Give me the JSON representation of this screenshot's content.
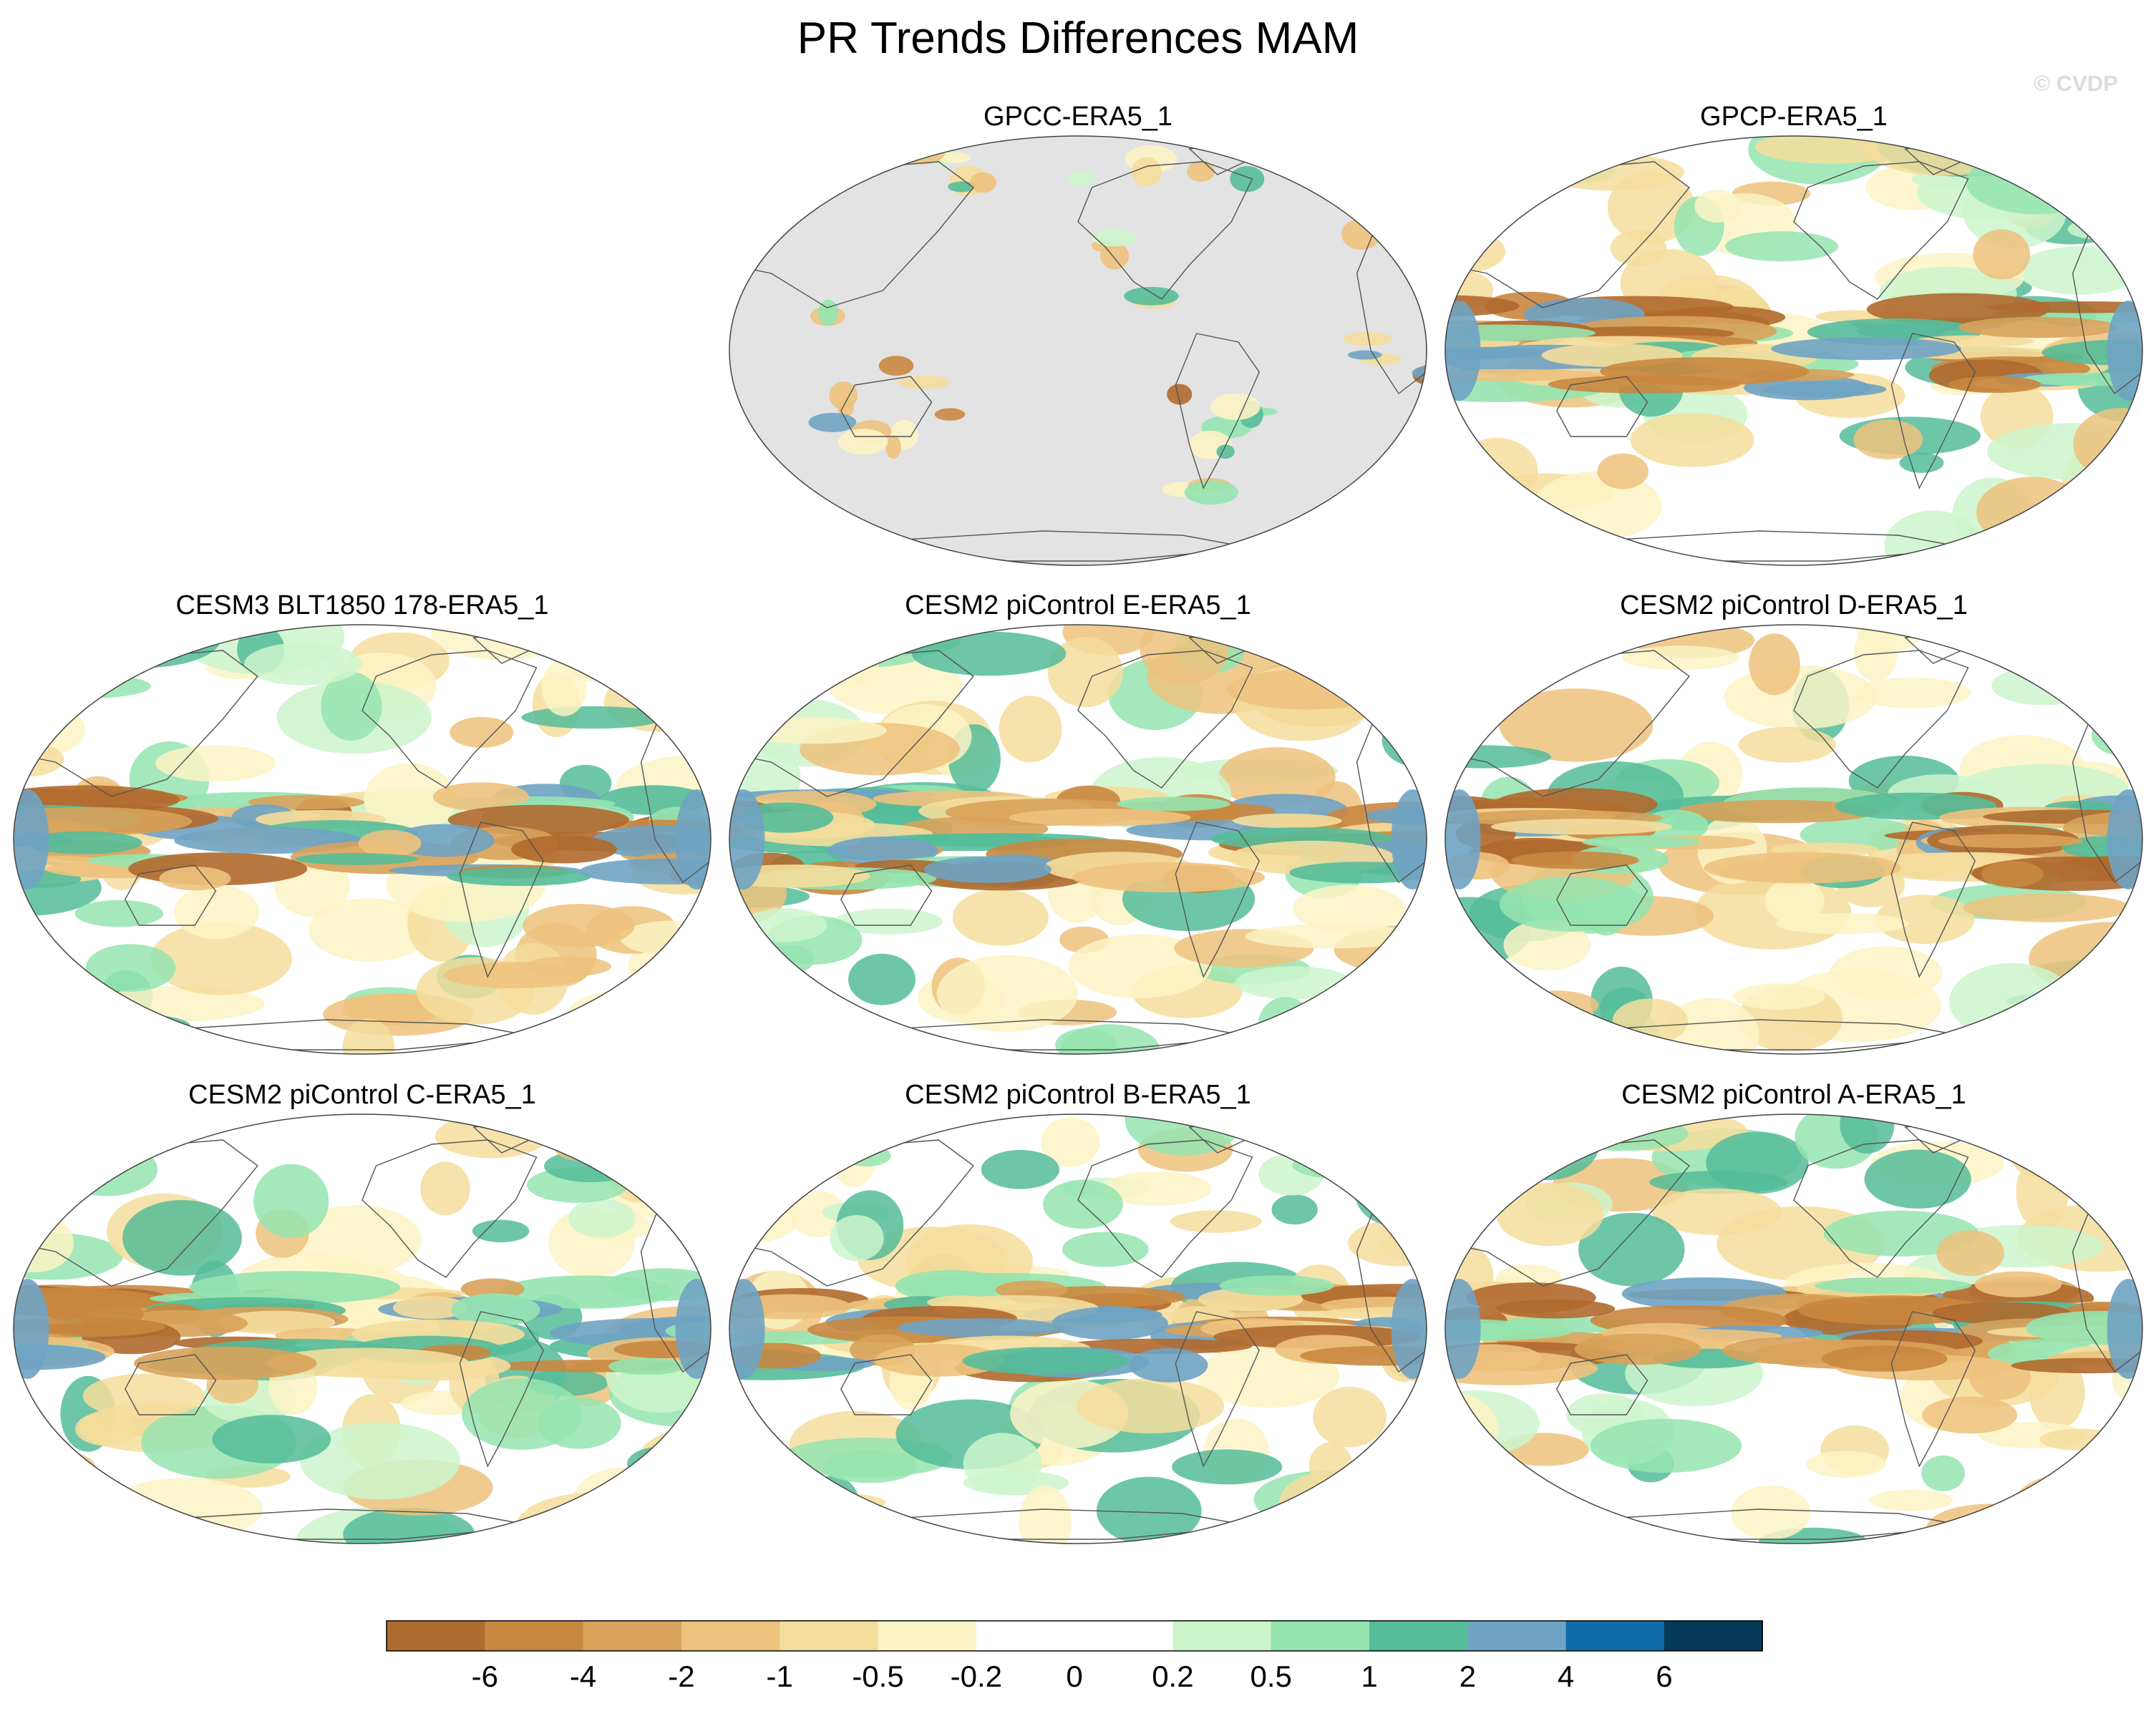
{
  "figure": {
    "title": "PR Trends Differences MAM",
    "watermark": "© CVDP"
  },
  "panels": [
    {
      "id": "p1",
      "title": "GPCC-ERA5_1",
      "ocean_masked": true
    },
    {
      "id": "p2",
      "title": "GPCP-ERA5_1",
      "ocean_masked": false
    },
    {
      "id": "p3",
      "title": "CESM3 BLT1850 178-ERA5_1",
      "ocean_masked": false
    },
    {
      "id": "p4",
      "title": "CESM2 piControl E-ERA5_1",
      "ocean_masked": false
    },
    {
      "id": "p5",
      "title": "CESM2 piControl D-ERA5_1",
      "ocean_masked": false
    },
    {
      "id": "p6",
      "title": "CESM2 piControl C-ERA5_1",
      "ocean_masked": false
    },
    {
      "id": "p7",
      "title": "CESM2 piControl B-ERA5_1",
      "ocean_masked": false
    },
    {
      "id": "p8",
      "title": "CESM2 piControl A-ERA5_1",
      "ocean_masked": false
    }
  ],
  "colorbar": {
    "colors": [
      "#b0692e",
      "#c9873f",
      "#d8a25a",
      "#edc27d",
      "#f4dd9c",
      "#fbf3c4",
      "#ffffff",
      "#ffffff",
      "#cdf5cc",
      "#95e4b0",
      "#55bc99",
      "#6fa3c3",
      "#0f6aa8",
      "#053a58"
    ],
    "tick_labels": [
      "-6",
      "-4",
      "-2",
      "-1",
      "-0.5",
      "-0.2",
      "0",
      "0.2",
      "0.5",
      "1",
      "2",
      "4",
      "6"
    ]
  },
  "colors": {
    "masked_gray": "#e3e3e3",
    "coastline": "#555555"
  }
}
